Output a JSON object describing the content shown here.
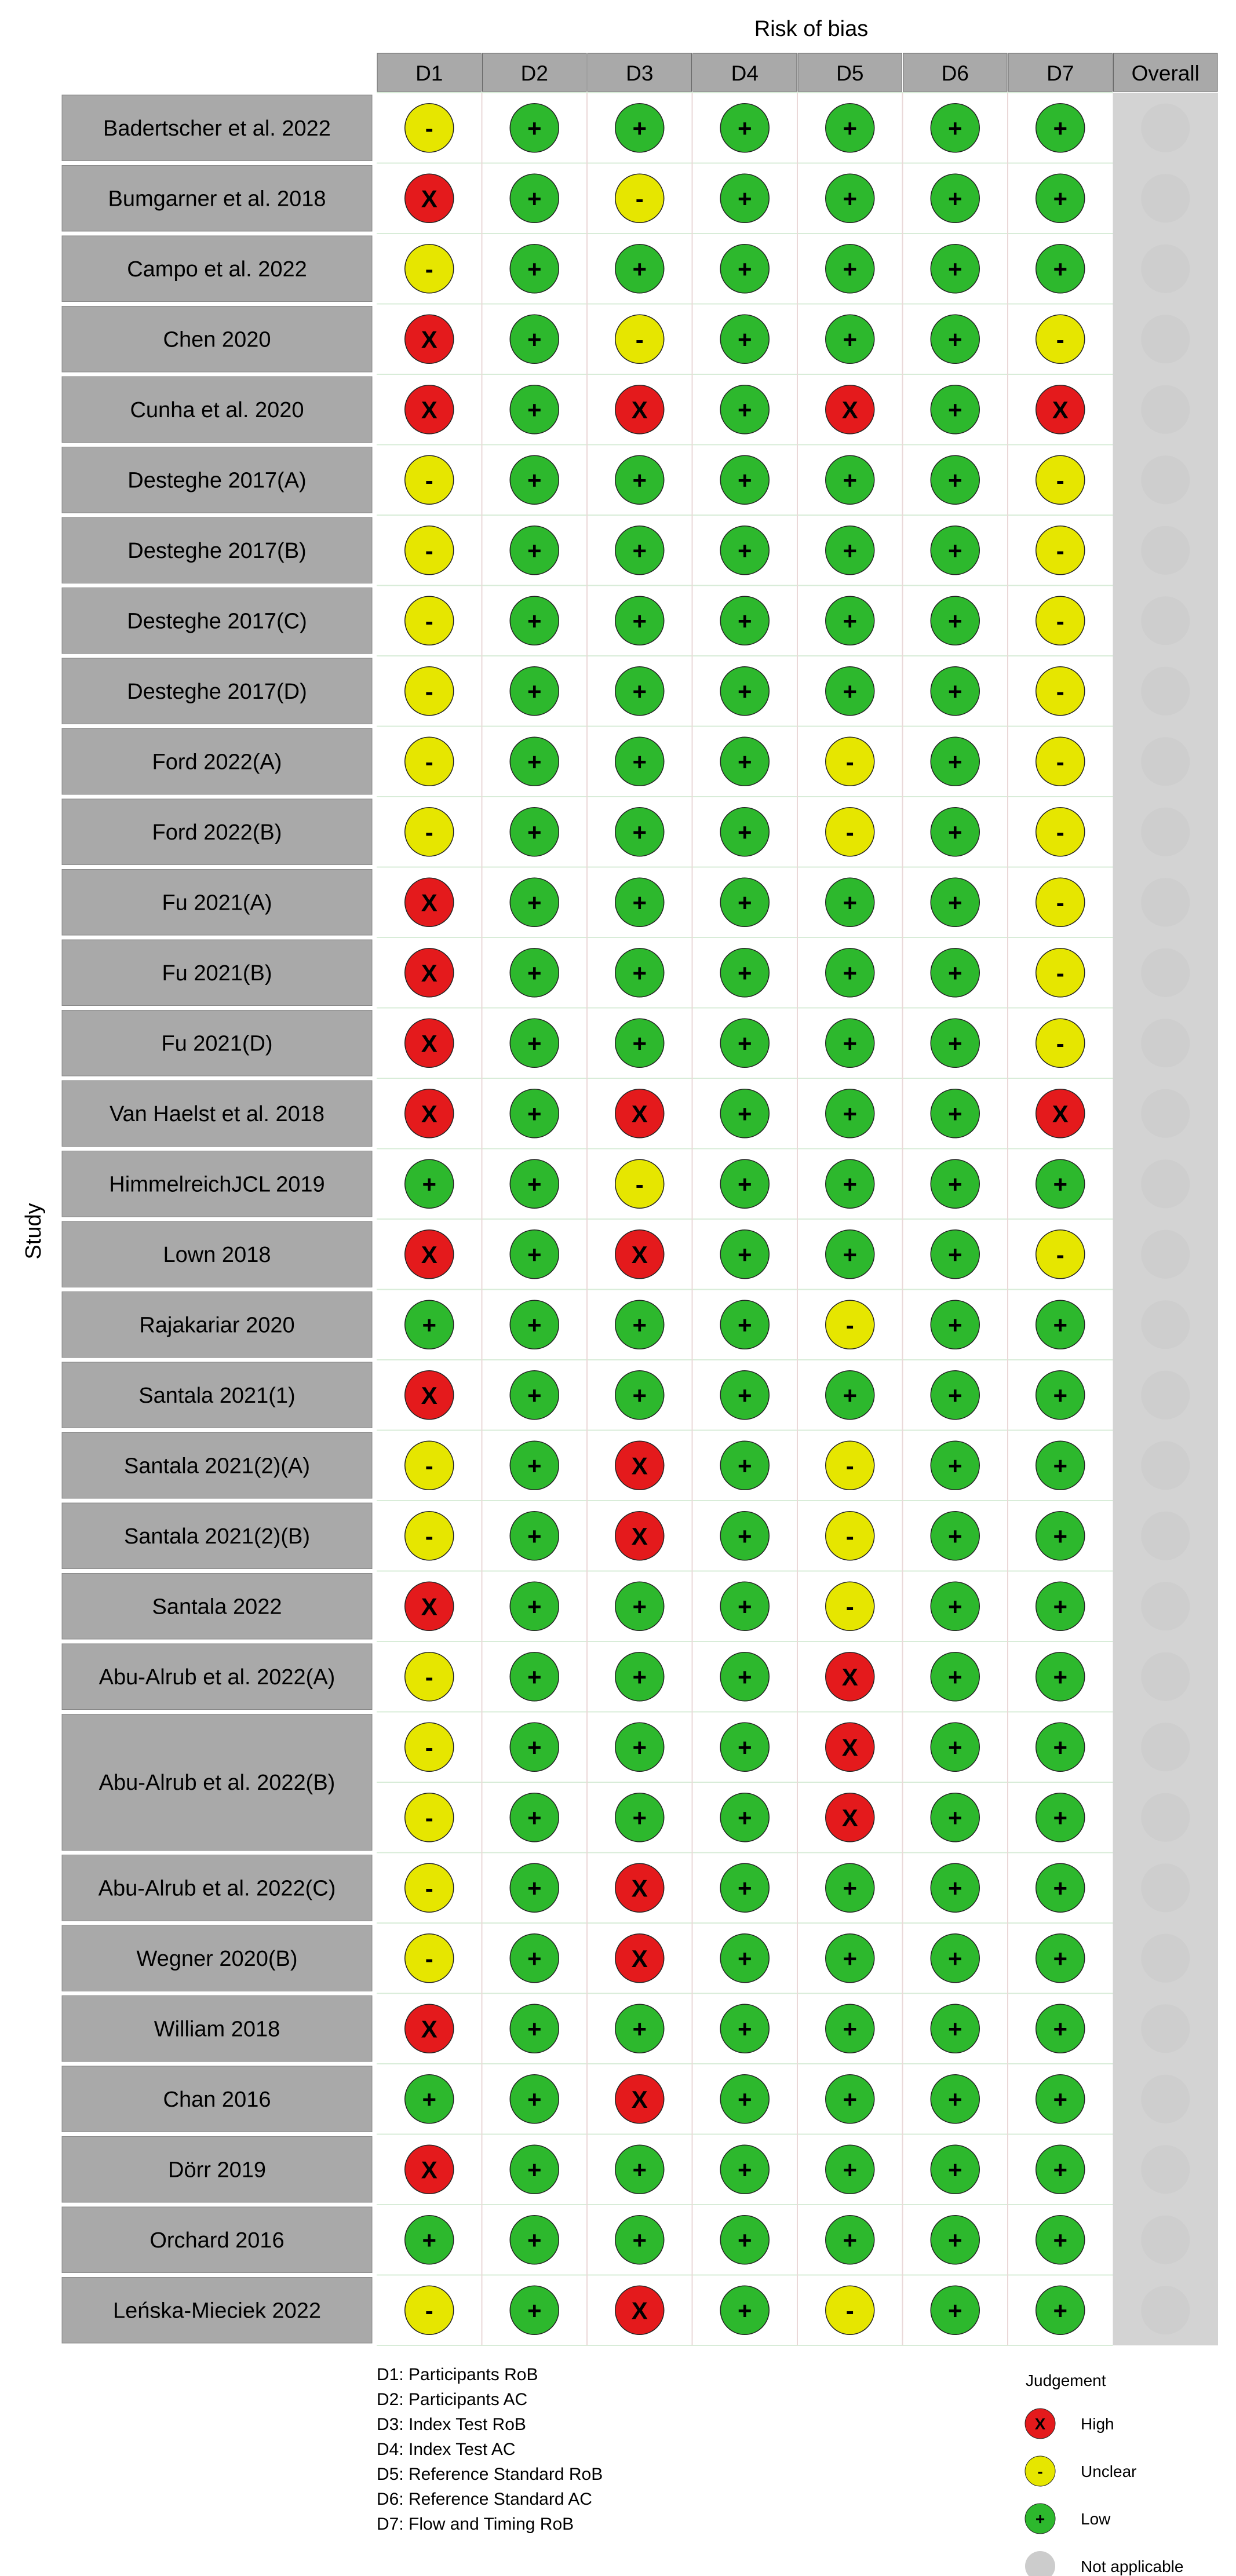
{
  "chart_data": {
    "type": "table",
    "title": "Risk of bias",
    "ylabel": "Study",
    "columns": [
      "D1",
      "D2",
      "D3",
      "D4",
      "D5",
      "D6",
      "D7",
      "Overall"
    ],
    "studies": [
      "Badertscher et al. 2022",
      "Bumgarner et al. 2018",
      "Campo et al. 2022",
      "Chen 2020",
      "Cunha et al. 2020",
      "Desteghe 2017(A)",
      "Desteghe 2017(B)",
      "Desteghe 2017(C)",
      "Desteghe 2017(D)",
      "Ford 2022(A)",
      "Ford 2022(B)",
      "Fu 2021(A)",
      "Fu 2021(B)",
      "Fu 2021(D)",
      "Van Haelst et al. 2018",
      "HimmelreichJCL 2019",
      "Lown 2018",
      "Rajakariar 2020",
      "Santala 2021(1)",
      "Santala 2021(2)(A)",
      "Santala 2021(2)(B)",
      "Santala 2022",
      "Abu-Alrub et al. 2022(A)",
      "Abu-Alrub et al. 2022(B)",
      "Abu-Alrub et al. 2022(C)",
      "Wegner 2020(B)",
      "William 2018",
      "Chan 2016",
      "Dörr 2019",
      "Orchard 2016",
      "Leńska-Mieciek 2022"
    ],
    "row_layout": [
      1,
      1,
      1,
      1,
      1,
      1,
      1,
      1,
      1,
      1,
      1,
      1,
      1,
      1,
      1,
      1,
      1,
      1,
      1,
      1,
      1,
      1,
      1,
      2,
      1,
      1,
      1,
      1,
      1,
      1,
      1
    ],
    "judgements": [
      [
        "U",
        "L",
        "L",
        "L",
        "L",
        "L",
        "L",
        "N"
      ],
      [
        "H",
        "L",
        "U",
        "L",
        "L",
        "L",
        "L",
        "N"
      ],
      [
        "U",
        "L",
        "L",
        "L",
        "L",
        "L",
        "L",
        "N"
      ],
      [
        "H",
        "L",
        "U",
        "L",
        "L",
        "L",
        "U",
        "N"
      ],
      [
        "H",
        "L",
        "H",
        "L",
        "H",
        "L",
        "H",
        "N"
      ],
      [
        "U",
        "L",
        "L",
        "L",
        "L",
        "L",
        "U",
        "N"
      ],
      [
        "U",
        "L",
        "L",
        "L",
        "L",
        "L",
        "U",
        "N"
      ],
      [
        "U",
        "L",
        "L",
        "L",
        "L",
        "L",
        "U",
        "N"
      ],
      [
        "U",
        "L",
        "L",
        "L",
        "L",
        "L",
        "U",
        "N"
      ],
      [
        "U",
        "L",
        "L",
        "L",
        "U",
        "L",
        "U",
        "N"
      ],
      [
        "U",
        "L",
        "L",
        "L",
        "U",
        "L",
        "U",
        "N"
      ],
      [
        "H",
        "L",
        "L",
        "L",
        "L",
        "L",
        "U",
        "N"
      ],
      [
        "H",
        "L",
        "L",
        "L",
        "L",
        "L",
        "U",
        "N"
      ],
      [
        "H",
        "L",
        "L",
        "L",
        "L",
        "L",
        "U",
        "N"
      ],
      [
        "H",
        "L",
        "H",
        "L",
        "L",
        "L",
        "H",
        "N"
      ],
      [
        "L",
        "L",
        "U",
        "L",
        "L",
        "L",
        "L",
        "N"
      ],
      [
        "H",
        "L",
        "H",
        "L",
        "L",
        "L",
        "U",
        "N"
      ],
      [
        "L",
        "L",
        "L",
        "L",
        "U",
        "L",
        "L",
        "N"
      ],
      [
        "H",
        "L",
        "L",
        "L",
        "L",
        "L",
        "L",
        "N"
      ],
      [
        "U",
        "L",
        "H",
        "L",
        "U",
        "L",
        "L",
        "N"
      ],
      [
        "U",
        "L",
        "H",
        "L",
        "U",
        "L",
        "L",
        "N"
      ],
      [
        "H",
        "L",
        "L",
        "L",
        "U",
        "L",
        "L",
        "N"
      ],
      [
        "U",
        "L",
        "L",
        "L",
        "H",
        "L",
        "L",
        "N"
      ],
      [
        "U",
        "L",
        "L",
        "L",
        "H",
        "L",
        "L",
        "N"
      ],
      [
        "U",
        "L",
        "L",
        "L",
        "H",
        "L",
        "L",
        "N"
      ],
      [
        "U",
        "L",
        "H",
        "L",
        "L",
        "L",
        "L",
        "N"
      ],
      [
        "U",
        "L",
        "H",
        "L",
        "L",
        "L",
        "L",
        "N"
      ],
      [
        "H",
        "L",
        "L",
        "L",
        "L",
        "L",
        "L",
        "N"
      ],
      [
        "L",
        "L",
        "H",
        "L",
        "L",
        "L",
        "L",
        "N"
      ],
      [
        "H",
        "L",
        "L",
        "L",
        "L",
        "L",
        "L",
        "N"
      ],
      [
        "L",
        "L",
        "L",
        "L",
        "L",
        "L",
        "L",
        "N"
      ],
      [
        "U",
        "L",
        "H",
        "L",
        "U",
        "L",
        "L",
        "N"
      ]
    ],
    "domain_key": [
      "D1: Participants RoB",
      "D2: Participants AC",
      "D3: Index Test RoB",
      "D4: Index Test AC",
      "D5: Reference Standard RoB",
      "D6: Reference Standard AC",
      "D7: Flow and Timing RoB"
    ],
    "legend": {
      "title": "Judgement",
      "items": [
        {
          "code": "H",
          "label": "High",
          "symbol": "X",
          "color": "#e41a1c"
        },
        {
          "code": "U",
          "label": "Unclear",
          "symbol": "-",
          "color": "#e6e600"
        },
        {
          "code": "L",
          "label": "Low",
          "symbol": "+",
          "color": "#2db82d"
        },
        {
          "code": "N",
          "label": "Not applicable",
          "symbol": "",
          "color": "#cccccc"
        }
      ]
    }
  }
}
